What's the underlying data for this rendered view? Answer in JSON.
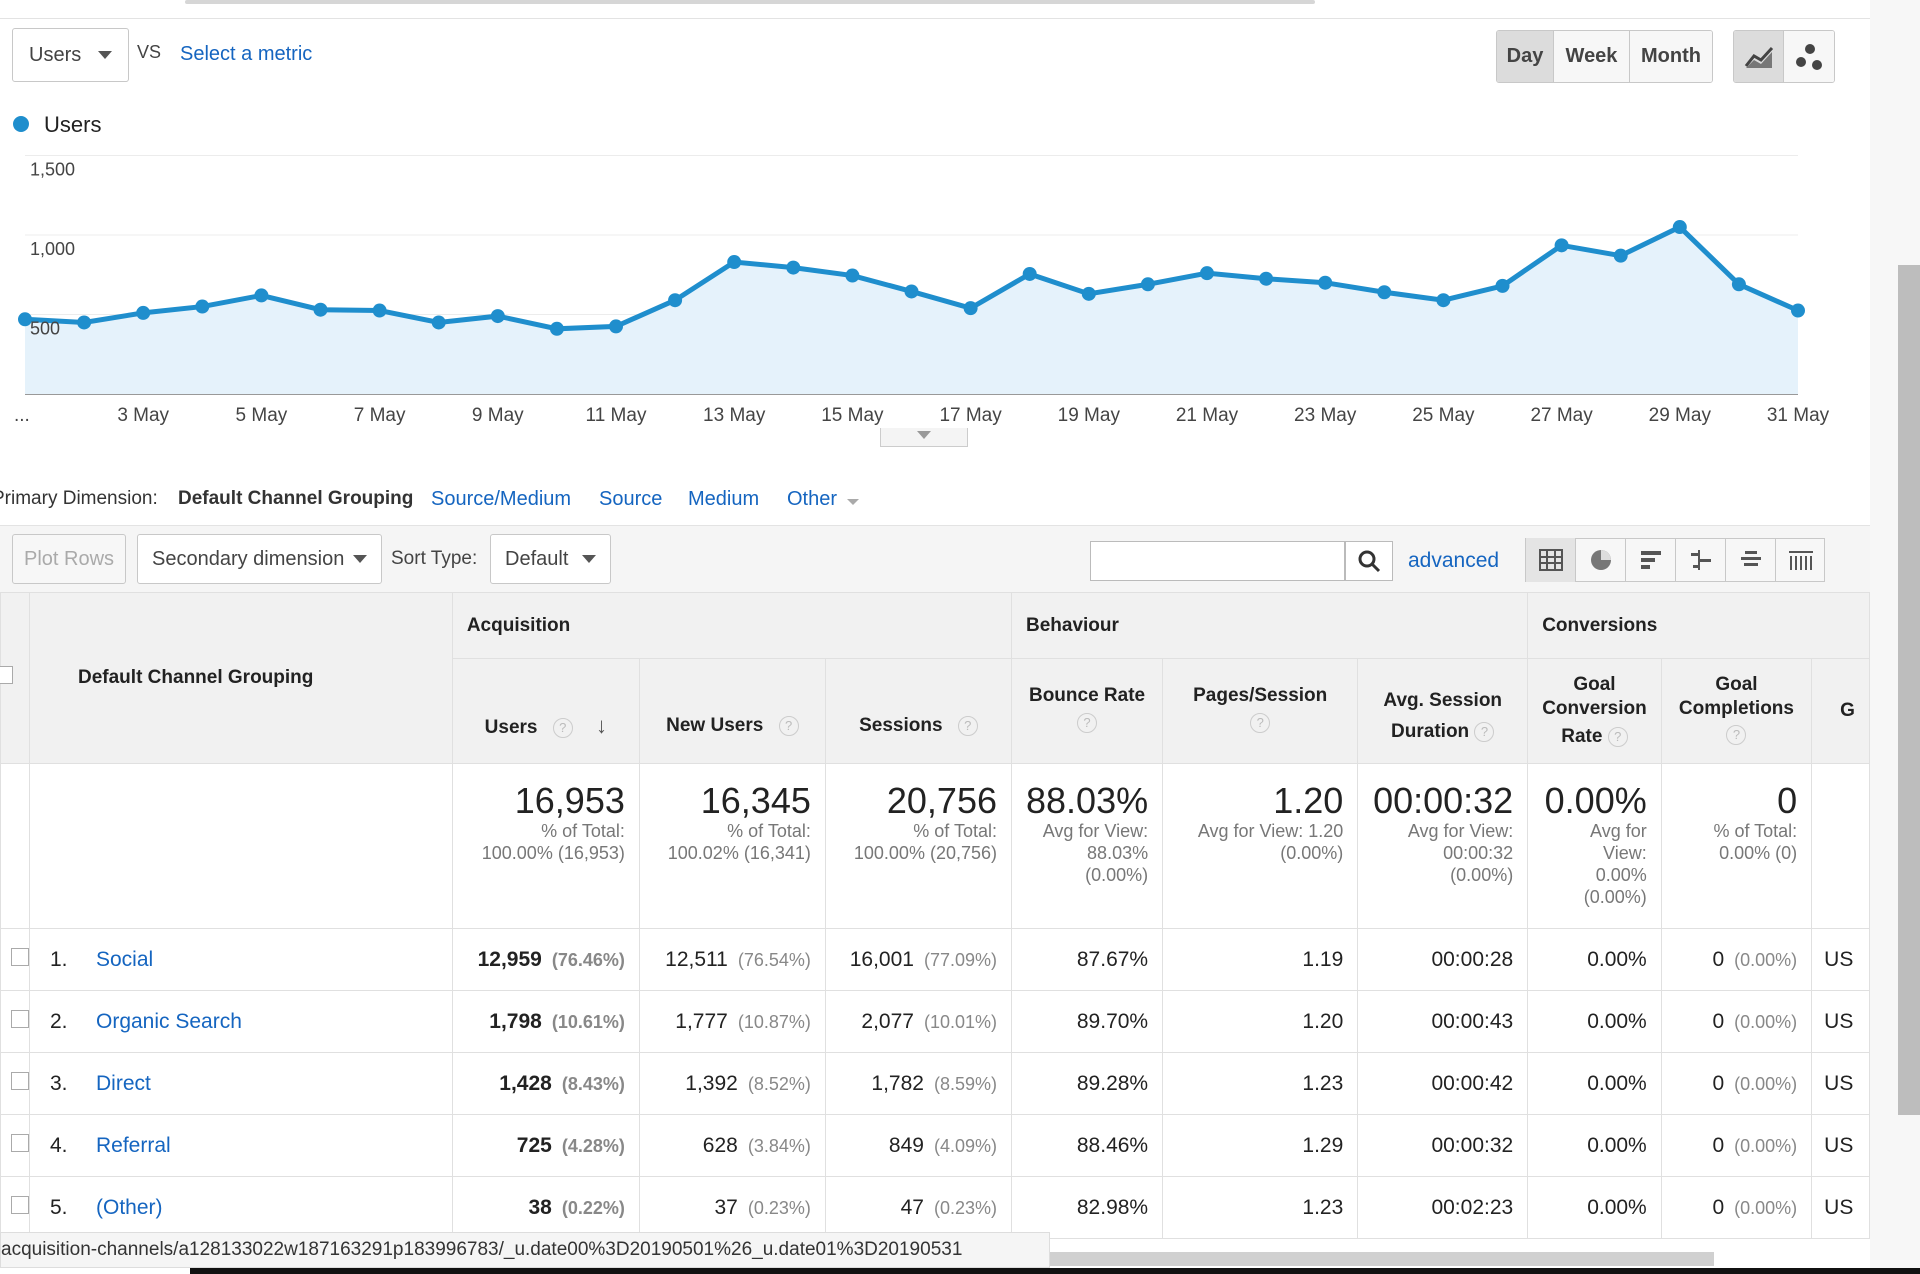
{
  "metric_selector": {
    "value": "Users",
    "vs": "VS",
    "select_metric": "Select a metric"
  },
  "granularity": {
    "day": "Day",
    "week": "Week",
    "month": "Month",
    "selected": "Day"
  },
  "chart_data": {
    "type": "area",
    "legend": "Users",
    "color": "#1f8ecd",
    "y_ticks": [
      "1,500",
      "1,000",
      "500"
    ],
    "ylim": [
      0,
      1500
    ],
    "x_tick_labels": [
      "...",
      "3 May",
      "5 May",
      "7 May",
      "9 May",
      "11 May",
      "13 May",
      "15 May",
      "17 May",
      "19 May",
      "21 May",
      "23 May",
      "25 May",
      "27 May",
      "29 May",
      "31 May"
    ],
    "x": [
      "1 May",
      "2 May",
      "3 May",
      "4 May",
      "5 May",
      "6 May",
      "7 May",
      "8 May",
      "9 May",
      "10 May",
      "11 May",
      "12 May",
      "13 May",
      "14 May",
      "15 May",
      "16 May",
      "17 May",
      "18 May",
      "19 May",
      "20 May",
      "21 May",
      "22 May",
      "23 May",
      "24 May",
      "25 May",
      "26 May",
      "27 May",
      "28 May",
      "29 May",
      "30 May",
      "31 May"
    ],
    "values": [
      470,
      450,
      510,
      550,
      620,
      530,
      525,
      450,
      490,
      410,
      425,
      590,
      830,
      795,
      745,
      645,
      540,
      755,
      630,
      690,
      760,
      725,
      700,
      640,
      590,
      680,
      935,
      870,
      1050,
      690,
      525
    ]
  },
  "primary_dimension": {
    "label": "Primary Dimension:",
    "selected": "Default Channel Grouping",
    "options": [
      "Source/Medium",
      "Source",
      "Medium",
      "Other"
    ]
  },
  "toolbar": {
    "plot_rows": "Plot Rows",
    "secondary_dimension": "Secondary dimension",
    "sort_type_label": "Sort Type:",
    "sort_type_value": "Default",
    "search_value": "",
    "advanced": "advanced"
  },
  "table": {
    "dimension_header": "Default Channel Grouping",
    "groups": {
      "acquisition": "Acquisition",
      "behaviour": "Behaviour",
      "conversions": "Conversions"
    },
    "columns": {
      "users": "Users",
      "new_users": "New Users",
      "sessions": "Sessions",
      "bounce_rate": "Bounce Rate",
      "pages_session": "Pages/Session",
      "avg_session_1": "Avg. Session",
      "avg_session_2": "Duration",
      "gcr_1": "Goal",
      "gcr_2": "Conversion",
      "gcr_3": "Rate",
      "gc_1": "Goal",
      "gc_2": "Completions",
      "cut": "G"
    },
    "totals": {
      "users": {
        "value": "16,953",
        "l1": "% of Total:",
        "l2": "100.00% (16,953)"
      },
      "new_users": {
        "value": "16,345",
        "l1": "% of Total:",
        "l2": "100.02% (16,341)"
      },
      "sessions": {
        "value": "20,756",
        "l1": "% of Total:",
        "l2": "100.00% (20,756)"
      },
      "bounce_rate": {
        "value": "88.03%",
        "l1": "Avg for View:",
        "l2": "88.03%",
        "l3": "(0.00%)"
      },
      "pages_session": {
        "value": "1.20",
        "l1": "Avg for View: 1.20",
        "l2": "(0.00%)"
      },
      "avg_session": {
        "value": "00:00:32",
        "l1": "Avg for View:",
        "l2": "00:00:32",
        "l3": "(0.00%)"
      },
      "gcr": {
        "value": "0.00%",
        "l1": "Avg for",
        "l2": "View:",
        "l3": "0.00%",
        "l4": "(0.00%)"
      },
      "gc": {
        "value": "0",
        "l1": "% of Total:",
        "l2": "0.00% (0)"
      }
    },
    "rows": [
      {
        "n": "1.",
        "name": "Social",
        "users": "12,959",
        "users_pct": "(76.46%)",
        "new_users": "12,511",
        "new_users_pct": "(76.54%)",
        "sessions": "16,001",
        "sessions_pct": "(77.09%)",
        "bounce": "87.67%",
        "pages": "1.19",
        "dur": "00:00:28",
        "gcr": "0.00%",
        "gc": "0",
        "gc_pct": "(0.00%)",
        "cut": "US"
      },
      {
        "n": "2.",
        "name": "Organic Search",
        "users": "1,798",
        "users_pct": "(10.61%)",
        "new_users": "1,777",
        "new_users_pct": "(10.87%)",
        "sessions": "2,077",
        "sessions_pct": "(10.01%)",
        "bounce": "89.70%",
        "pages": "1.20",
        "dur": "00:00:43",
        "gcr": "0.00%",
        "gc": "0",
        "gc_pct": "(0.00%)",
        "cut": "US"
      },
      {
        "n": "3.",
        "name": "Direct",
        "users": "1,428",
        "users_pct": "(8.43%)",
        "new_users": "1,392",
        "new_users_pct": "(8.52%)",
        "sessions": "1,782",
        "sessions_pct": "(8.59%)",
        "bounce": "89.28%",
        "pages": "1.23",
        "dur": "00:00:42",
        "gcr": "0.00%",
        "gc": "0",
        "gc_pct": "(0.00%)",
        "cut": "US"
      },
      {
        "n": "4.",
        "name": "Referral",
        "users": "725",
        "users_pct": "(4.28%)",
        "new_users": "628",
        "new_users_pct": "(3.84%)",
        "sessions": "849",
        "sessions_pct": "(4.09%)",
        "bounce": "88.46%",
        "pages": "1.29",
        "dur": "00:00:32",
        "gcr": "0.00%",
        "gc": "0",
        "gc_pct": "(0.00%)",
        "cut": "US"
      },
      {
        "n": "5.",
        "name": "(Other)",
        "users": "38",
        "users_pct": "(0.22%)",
        "new_users": "37",
        "new_users_pct": "(0.23%)",
        "sessions": "47",
        "sessions_pct": "(0.23%)",
        "bounce": "82.98%",
        "pages": "1.23",
        "dur": "00:02:23",
        "gcr": "0.00%",
        "gc": "0",
        "gc_pct": "(0.00%)",
        "cut": "US"
      }
    ]
  },
  "status_bar": "acquisition-channels/a128133022w187163291p183996783/_u.date00%3D20190501%26_u.date01%3D20190531"
}
